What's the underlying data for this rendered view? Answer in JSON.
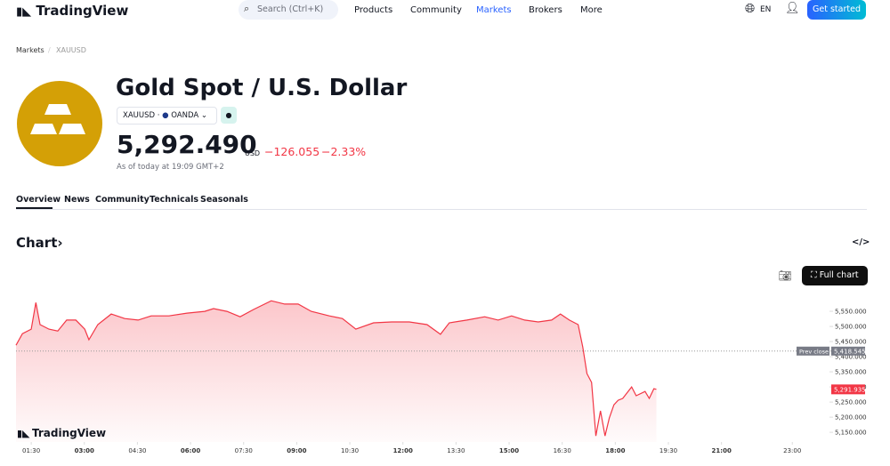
{
  "header": {
    "logo": "TradingView",
    "search": "Search (Ctrl+K)",
    "nav": [
      "Products",
      "Community",
      "Markets",
      "Brokers",
      "More"
    ],
    "language": "EN",
    "cta": "Get started"
  },
  "breadcrumb": [
    "Markets",
    "XAUUSD"
  ],
  "symbol": {
    "title": "Gold Spot / U.S. Dollar",
    "ticker": "XAUUSD",
    "exchange": "OANDA",
    "price": "5,292.490",
    "currency": "USD",
    "change": "−126.055",
    "change_percent": "−2.33%",
    "as_of": "As of today at 19:09 GMT+2"
  },
  "tabs": [
    "Overview",
    "News",
    "Community",
    "Technicals",
    "Seasonals"
  ],
  "section_title": "Chart",
  "full_chart": "Full chart",
  "chart_data": {
    "type": "area",
    "color": "#f23645",
    "x": [
      1.07,
      1.25,
      1.5,
      1.63,
      1.75,
      2.0,
      2.25,
      2.5,
      2.76,
      3.01,
      3.13,
      3.38,
      3.76,
      4.14,
      4.52,
      4.89,
      5.39,
      5.9,
      6.4,
      6.65,
      7.03,
      7.4,
      7.78,
      8.28,
      8.66,
      9.04,
      9.41,
      9.92,
      10.29,
      10.67,
      11.17,
      11.68,
      12.18,
      12.68,
      13.06,
      13.31,
      13.81,
      14.31,
      14.69,
      15.07,
      15.44,
      15.82,
      16.2,
      16.45,
      16.7,
      16.95,
      17.08,
      17.2,
      17.33,
      17.45,
      17.58,
      17.71,
      17.83,
      17.96,
      18.08,
      18.21,
      18.46,
      18.59,
      18.84,
      18.96,
      19.09,
      19.16
    ],
    "values": [
      5438,
      5476,
      5491,
      5579,
      5506,
      5491,
      5485,
      5521,
      5521,
      5491,
      5456,
      5506,
      5541,
      5526,
      5521,
      5535,
      5535,
      5544,
      5550,
      5559,
      5550,
      5532,
      5556,
      5585,
      5574,
      5574,
      5550,
      5535,
      5526,
      5491,
      5512,
      5515,
      5515,
      5506,
      5474,
      5512,
      5521,
      5532,
      5521,
      5535,
      5521,
      5515,
      5521,
      5541,
      5521,
      5506,
      5432,
      5344,
      5315,
      5138,
      5221,
      5138,
      5197,
      5241,
      5256,
      5262,
      5300,
      5271,
      5285,
      5262,
      5294,
      5291.935
    ],
    "xlim": [
      1.07,
      24
    ],
    "ylim": [
      5118,
      5609
    ],
    "xticks": [
      {
        "value": 1.5,
        "label": "01:30"
      },
      {
        "value": 3,
        "label": "03:00"
      },
      {
        "value": 4.5,
        "label": "04:30"
      },
      {
        "value": 6,
        "label": "06:00"
      },
      {
        "value": 7.5,
        "label": "07:30"
      },
      {
        "value": 9,
        "label": "09:00"
      },
      {
        "value": 10.5,
        "label": "10:30"
      },
      {
        "value": 12,
        "label": "12:00"
      },
      {
        "value": 13.5,
        "label": "13:30"
      },
      {
        "value": 15,
        "label": "15:00"
      },
      {
        "value": 16.5,
        "label": "16:30"
      },
      {
        "value": 18,
        "label": "18:00"
      },
      {
        "value": 19.5,
        "label": "19:30"
      },
      {
        "value": 21,
        "label": "21:00"
      },
      {
        "value": 23,
        "label": "23:00"
      }
    ],
    "yticks": [
      {
        "value": 5150,
        "label": "5,150.000"
      },
      {
        "value": 5200,
        "label": "5,200.000"
      },
      {
        "value": 5250,
        "label": "5,250.000"
      },
      {
        "value": 5300,
        "label": "5,300.000"
      },
      {
        "value": 5350,
        "label": "5,350.000"
      },
      {
        "value": 5400,
        "label": "5,400.000"
      },
      {
        "value": 5450,
        "label": "5,450.000"
      },
      {
        "value": 5500,
        "label": "5,500.000"
      },
      {
        "value": 5550,
        "label": "5,550.000"
      }
    ],
    "prev_close": {
      "name": "Prev close",
      "value": 5418.545,
      "label": "5,418.545"
    },
    "last_price": {
      "value": 5291.935,
      "label": "5,291.935"
    },
    "watermark": "TradingView"
  }
}
